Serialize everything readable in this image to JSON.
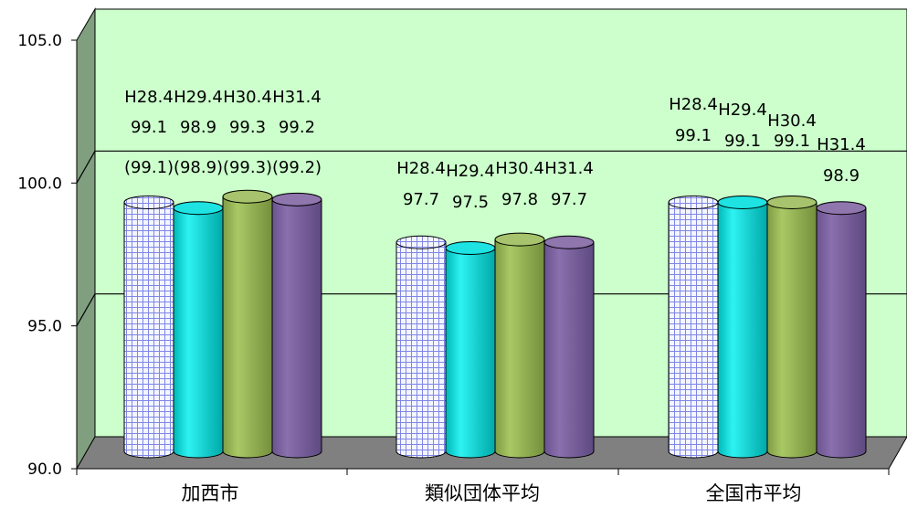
{
  "chart_data": {
    "type": "bar",
    "categories": [
      "加西市",
      "類似団体平均",
      "全国市平均"
    ],
    "series": [
      {
        "name": "H28.4",
        "values": [
          99.1,
          97.7,
          99.1
        ],
        "color": "#e8ecff"
      },
      {
        "name": "H29.4",
        "values": [
          98.9,
          97.5,
          99.1
        ],
        "color": "#00dede"
      },
      {
        "name": "H30.4",
        "values": [
          99.3,
          97.8,
          99.1
        ],
        "color": "#9bbb59"
      },
      {
        "name": "H31.4",
        "values": [
          99.2,
          97.7,
          98.9
        ],
        "color": "#8064a2"
      }
    ],
    "value_labels": [
      [
        "99.1",
        "98.9",
        "99.3",
        "99.2"
      ],
      [
        "97.7",
        "97.5",
        "97.8",
        "97.7"
      ],
      [
        "99.1",
        "99.1",
        "99.1",
        "98.9"
      ]
    ],
    "extra_labels": [
      "(99.1)",
      "(98.9)",
      "(99.3)",
      "(99.2)"
    ],
    "yticks": [
      "90.0",
      "95.0",
      "100.0",
      "105.0"
    ],
    "ylim": [
      90,
      105
    ],
    "style": "3d-cylinder",
    "colors": {
      "plot_back": "#ccffcc",
      "floor": "#808080",
      "side_wall": "#7f9f7f"
    }
  }
}
